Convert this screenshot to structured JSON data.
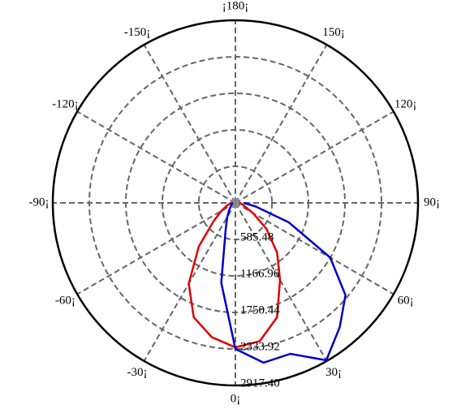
{
  "chart_data": {
    "type": "polar",
    "x": [
      -90,
      -80,
      -70,
      -60,
      -50,
      -40,
      -30,
      -20,
      -10,
      0,
      10,
      20,
      30,
      40,
      50,
      60,
      70,
      80,
      90
    ],
    "series": [
      {
        "color": "#e00000",
        "values": [
          65,
          104,
          156,
          259,
          454,
          908,
          1491,
          1945,
          2178,
          2308,
          2243,
          1945,
          1426,
          1037,
          648,
          324,
          156,
          104,
          65
        ]
      },
      {
        "color": "#0000cc",
        "values": [
          39,
          52,
          65,
          78,
          104,
          156,
          259,
          454,
          1297,
          2334,
          2593,
          2567,
          2904,
          2593,
          2295,
          1750,
          908,
          324,
          130
        ]
      }
    ],
    "rlim": [
      0,
      2917.4
    ],
    "rticks": [
      585.48,
      1166.96,
      1750.44,
      2333.92,
      {
        "value": 2917.4,
        "label": "2917.40"
      }
    ],
    "xticks": [
      {
        "value": 0,
        "label": "0¡"
      },
      {
        "value": 30,
        "label": "30¡"
      },
      {
        "value": 60,
        "label": "60¡"
      },
      {
        "value": 90,
        "label": "90¡"
      },
      {
        "value": 120,
        "label": "120¡"
      },
      {
        "value": 150,
        "label": "150¡"
      },
      {
        "value": 180,
        "label": "¡180¡"
      },
      {
        "value": -150,
        "label": "-150¡"
      },
      {
        "value": -120,
        "label": "-120¡"
      },
      {
        "value": -90,
        "label": "-90¡"
      },
      {
        "value": -60,
        "label": "-60¡"
      },
      {
        "value": -30,
        "label": "-30¡"
      }
    ],
    "grid": true
  }
}
